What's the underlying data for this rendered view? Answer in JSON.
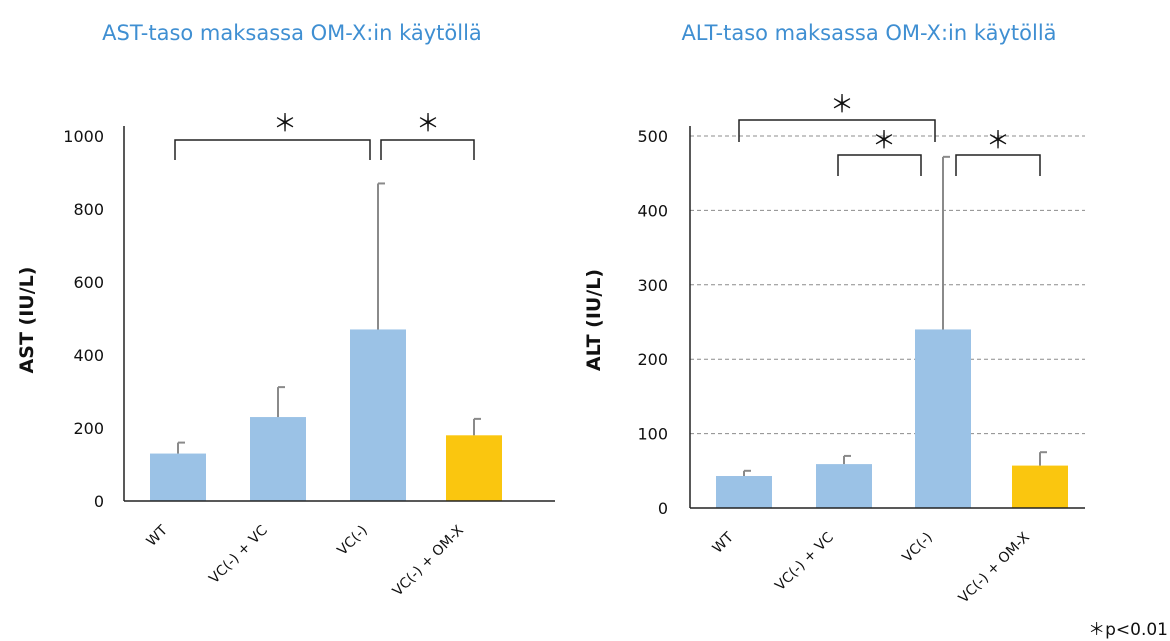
{
  "chart_data": [
    {
      "type": "bar",
      "title": "AST-taso maksassa OM-X:in käytöllä",
      "ylabel": "AST (IU/L)",
      "xlabel": "",
      "categories": [
        "WT",
        "VC(-) + VC",
        "VC(-)",
        "VC(-) + OM-X"
      ],
      "values": [
        130,
        230,
        470,
        180
      ],
      "error": [
        30,
        82,
        400,
        45
      ],
      "bar_colors": [
        "#9bc2e6",
        "#9bc2e6",
        "#9bc2e6",
        "#fac60f"
      ],
      "ylim": [
        0,
        1000
      ],
      "yticks": [
        0,
        200,
        400,
        600,
        800,
        1000
      ],
      "grid": false,
      "significance": [
        {
          "from": 0,
          "to": 2,
          "label": "＊"
        },
        {
          "from": 2,
          "to": 3,
          "label": "＊"
        }
      ]
    },
    {
      "type": "bar",
      "title": "ALT-taso maksassa OM-X:in käytöllä",
      "ylabel": "ALT (IU/L)",
      "xlabel": "",
      "categories": [
        "WT",
        "VC(-) + VC",
        "VC(-)",
        "VC(-) + OM-X"
      ],
      "values": [
        43,
        59,
        240,
        57
      ],
      "error": [
        7,
        11,
        232,
        18
      ],
      "bar_colors": [
        "#9bc2e6",
        "#9bc2e6",
        "#9bc2e6",
        "#fac60f"
      ],
      "ylim": [
        0,
        500
      ],
      "yticks": [
        0,
        100,
        200,
        300,
        400,
        500
      ],
      "grid": true,
      "significance": [
        {
          "from": 0,
          "to": 2,
          "label": "＊"
        },
        {
          "from": 1,
          "to": 2,
          "label": "＊"
        },
        {
          "from": 2,
          "to": 3,
          "label": "＊"
        }
      ]
    }
  ],
  "footnote": "＊p<0.01"
}
